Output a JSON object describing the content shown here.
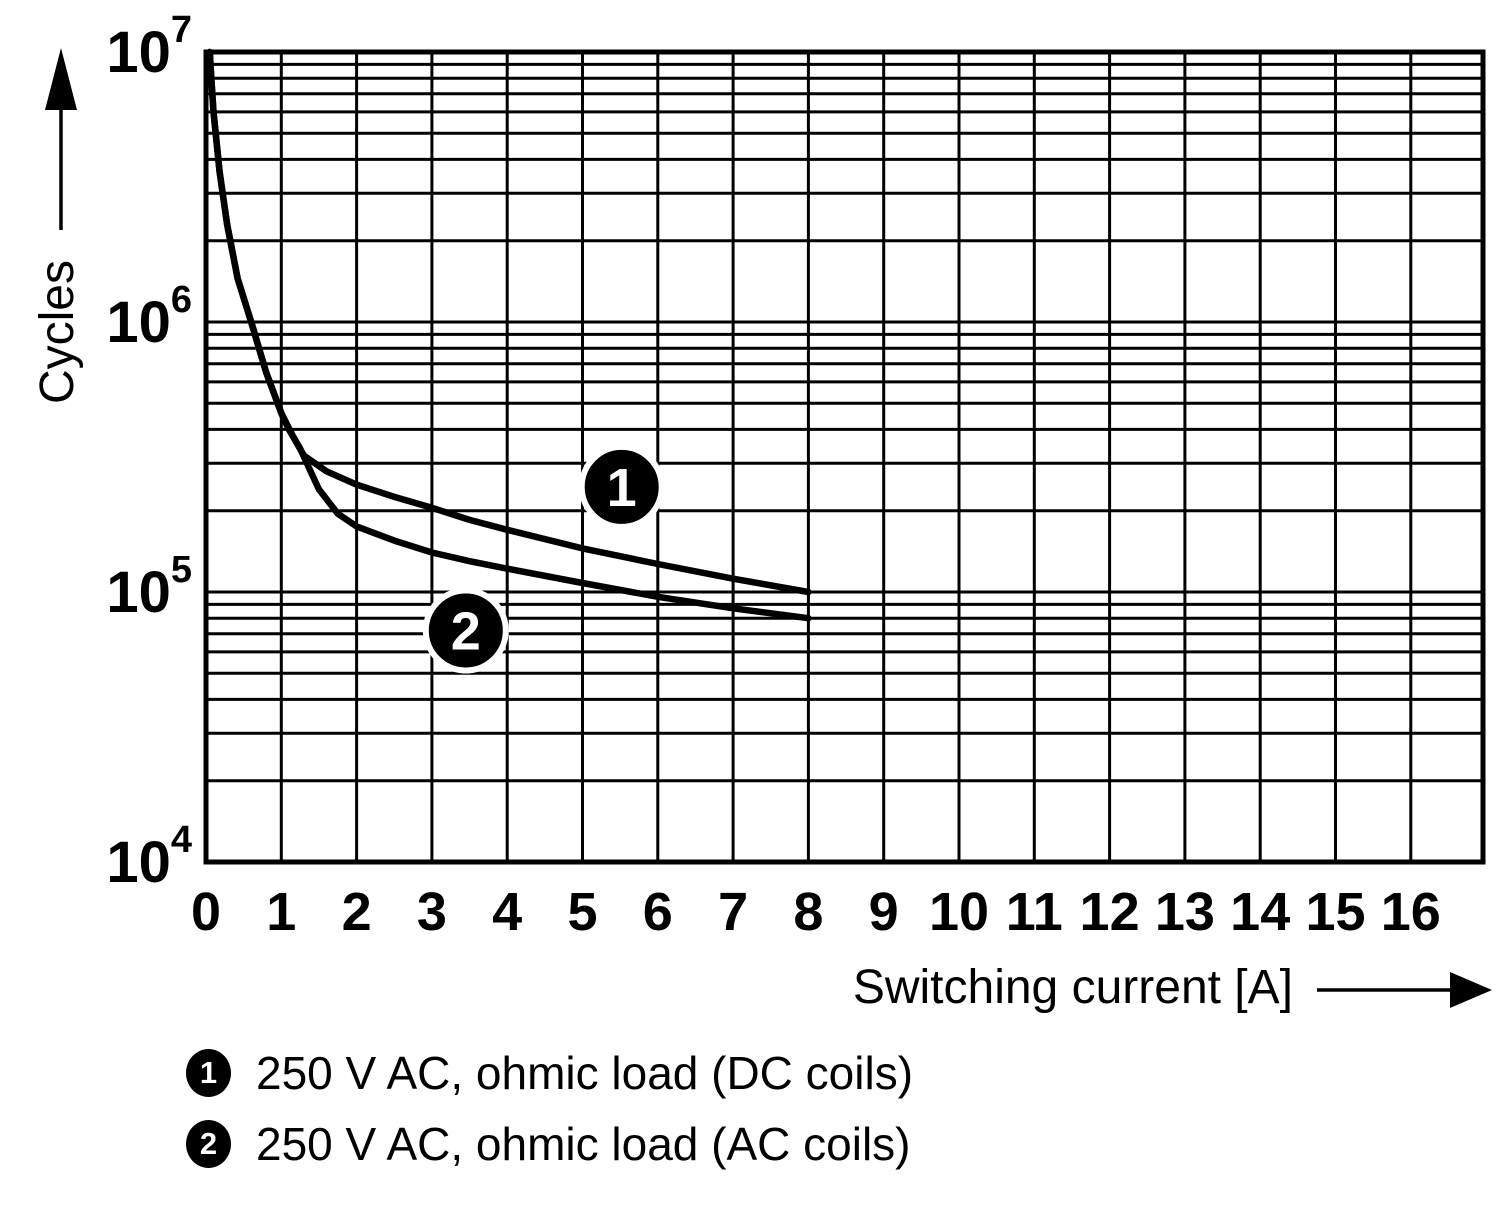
{
  "figure": {
    "background": "#ffffff",
    "ink": "#000000"
  },
  "chart_data": {
    "type": "line",
    "title": "",
    "xlabel": "Switching current [A]",
    "ylabel": "Cycles",
    "x_scale": "linear",
    "y_scale": "log",
    "xlim": [
      0,
      16.96
    ],
    "ylim": [
      10000,
      10000000
    ],
    "x_ticks": [
      "0",
      "1",
      "2",
      "3",
      "4",
      "5",
      "6",
      "7",
      "8",
      "9",
      "10",
      "11",
      "12",
      "13",
      "14",
      "15",
      "16"
    ],
    "y_ticks": [
      {
        "base": "10",
        "exp": "7"
      },
      {
        "base": "10",
        "exp": "6"
      },
      {
        "base": "10",
        "exp": "5"
      },
      {
        "base": "10",
        "exp": "4"
      }
    ],
    "grid": {
      "vertical": "every 1 A",
      "horizontal": "log decades with minor lines at 2-9 per decade",
      "legend_position": "below chart"
    },
    "series": [
      {
        "marker": "1",
        "label": "250 V AC, ohmic load (DC coils)",
        "badge_at": {
          "x": 5.52,
          "cycles": 245000
        },
        "points": [
          [
            0.05,
            10000000
          ],
          [
            0.07,
            8000000
          ],
          [
            0.1,
            6000000
          ],
          [
            0.18,
            3600000
          ],
          [
            0.28,
            2300000
          ],
          [
            0.42,
            1450000
          ],
          [
            0.6,
            1000000
          ],
          [
            0.8,
            650000
          ],
          [
            1.0,
            460000
          ],
          [
            1.15,
            380000
          ],
          [
            1.3,
            320000
          ],
          [
            1.6,
            280000
          ],
          [
            2.0,
            250000
          ],
          [
            2.5,
            225000
          ],
          [
            3.0,
            205000
          ],
          [
            3.5,
            185000
          ],
          [
            4.0,
            170000
          ],
          [
            5.0,
            145000
          ],
          [
            6.0,
            127000
          ],
          [
            7.0,
            112000
          ],
          [
            8.0,
            100000
          ]
        ]
      },
      {
        "marker": "2",
        "label": "250 V AC, ohmic load (AC coils)",
        "badge_at": {
          "x": 3.45,
          "cycles": 72000
        },
        "points": [
          [
            0.05,
            10000000
          ],
          [
            0.07,
            8000000
          ],
          [
            0.1,
            6000000
          ],
          [
            0.18,
            3600000
          ],
          [
            0.28,
            2300000
          ],
          [
            0.42,
            1450000
          ],
          [
            0.6,
            1000000
          ],
          [
            0.8,
            650000
          ],
          [
            1.0,
            460000
          ],
          [
            1.1,
            400000
          ],
          [
            1.25,
            340000
          ],
          [
            1.5,
            240000
          ],
          [
            1.75,
            195000
          ],
          [
            2.0,
            175000
          ],
          [
            2.5,
            155000
          ],
          [
            3.0,
            140000
          ],
          [
            3.5,
            130000
          ],
          [
            4.0,
            122000
          ],
          [
            5.0,
            108000
          ],
          [
            6.0,
            96000
          ],
          [
            7.0,
            87000
          ],
          [
            8.0,
            80000
          ]
        ]
      }
    ]
  }
}
